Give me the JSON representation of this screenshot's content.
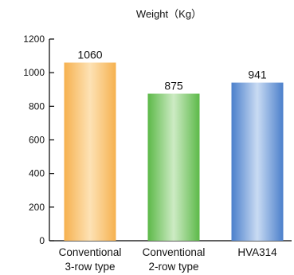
{
  "chart_data": {
    "type": "bar",
    "title": "Weight（Kg）",
    "categories": [
      [
        "Conventional",
        "3-row type"
      ],
      [
        "Conventional",
        "2-row type"
      ],
      [
        "HVA314"
      ]
    ],
    "values": [
      1060,
      875,
      941
    ],
    "value_labels": [
      "1060",
      "875",
      "941"
    ],
    "yticks": [
      0,
      200,
      400,
      600,
      800,
      1000,
      1200
    ],
    "ylim": [
      0,
      1200
    ],
    "colors": [
      "#f9bf63",
      "#6cc35a",
      "#5a8dd2"
    ],
    "grid": false,
    "legend": "none"
  }
}
